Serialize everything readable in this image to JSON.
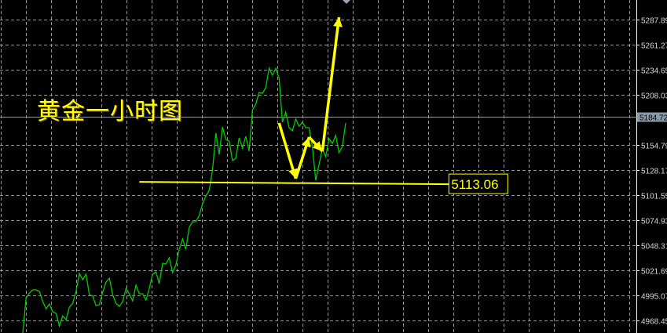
{
  "chart_data": {
    "type": "line",
    "title": "黄金一小时图",
    "ylim": [
      4955,
      5295
    ],
    "grid": true,
    "y_ticks": [
      "5287.89",
      "5261.27",
      "5234.65",
      "5208.03",
      "5154.79",
      "5128.17",
      "5101.55",
      "5074.93",
      "5048.31",
      "5021.69",
      "4995.07",
      "4968.45"
    ],
    "y_tick_values": [
      5287.89,
      5261.27,
      5234.65,
      5208.03,
      5154.79,
      5128.17,
      5101.55,
      5074.93,
      5048.31,
      5021.69,
      4995.07,
      4968.45
    ],
    "current_price": {
      "label": "5184.72",
      "value": 5184.72,
      "color": "#8a9aaa"
    },
    "series": [
      {
        "color": "#00cc00",
        "values": [
          4955.1,
          4992.5,
          4997.5,
          5000.9,
          5000.9,
          4999.2,
          4988.4,
          4980.9,
          4985.9,
          4977.6,
          4975.9,
          4962.6,
          4973.4,
          4969.2,
          4982.6,
          4986.7,
          4999.2,
          5018.3,
          5011.7,
          5017.5,
          4995.9,
          4994.2,
          4984.2,
          4985.1,
          4998.4,
          5009.2,
          5013.3,
          4995.9,
          4986.7,
          4983.4,
          4988.4,
          5002.5,
          4996.7,
          4989.2,
          5005.9,
          4996.7,
          4996.7,
          4990.0,
          5002.5,
          5017.5,
          5020.0,
          5007.5,
          5029.1,
          5028.3,
          5035.0,
          5019.2,
          5027.5,
          5044.1,
          5054.9,
          5044.1,
          5067.4,
          5073.2,
          5073.2,
          5079.9,
          5092.4,
          5100.7,
          5106.5,
          5128.2,
          5167.3,
          5144.8,
          5173.9,
          5160.6,
          5158.9,
          5138.1,
          5140.6,
          5162.3,
          5151.5,
          5163.9,
          5148.1,
          5192.2,
          5198.0,
          5210.5,
          5209.7,
          5215.5,
          5236.3,
          5228.8,
          5236.3,
          5225.5,
          5178.9,
          5189.7,
          5173.1,
          5169.8,
          5182.2,
          5174.7,
          5178.9,
          5173.1,
          5173.1,
          5153.1,
          5117.3,
          5134.0,
          5150.6,
          5142.3,
          5161.4,
          5156.4,
          5164.8,
          5146.5,
          5153.1,
          5178.1
        ]
      }
    ],
    "annotations": {
      "level_line": {
        "label": "5113.06",
        "value": 5113.06,
        "from_index": 35,
        "to_index": 128,
        "color": "#ffff00"
      },
      "arrow_path": {
        "color": "#ffff00",
        "points": [
          [
            77,
            5178.1
          ],
          [
            82,
            5119.0
          ],
          [
            86,
            5163.1
          ],
          [
            90,
            5148.1
          ],
          [
            95,
            5290.4
          ]
        ]
      }
    }
  }
}
